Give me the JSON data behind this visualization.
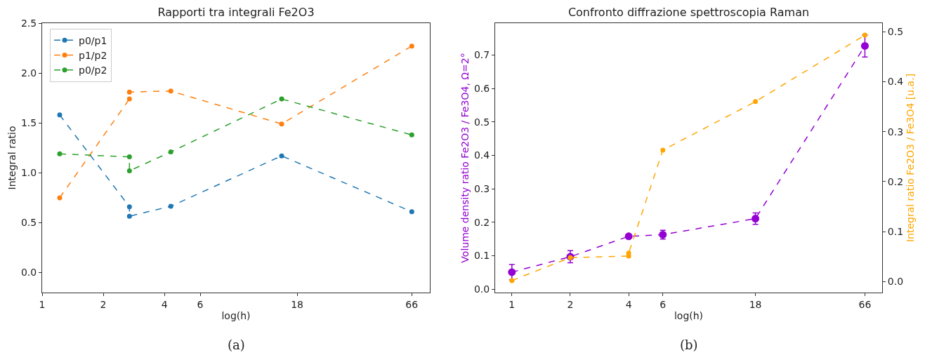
{
  "chart_data": [
    {
      "type": "line",
      "title": "Rapporti tra integrali Fe2O3",
      "xlabel": "log(h)",
      "ylabel": "Integral ratio",
      "log": "x",
      "xlim": [
        1,
        81
      ],
      "xticks": [
        1,
        2,
        4,
        6,
        18,
        66
      ],
      "ylim": [
        -0.2,
        2.5
      ],
      "yticks": [
        {
          "value": 0,
          "label": "0.0"
        },
        0.5,
        {
          "value": 1,
          "label": "1.0"
        },
        1.5,
        {
          "value": 2,
          "label": "2.0"
        },
        2.5
      ],
      "grid": false,
      "legend": "top left",
      "marker": "circle",
      "line_style": "dashed",
      "annotations": [
        "(a)"
      ],
      "series": [
        {
          "name": "p0/p1",
          "color": "#1f77b4",
          "x": [
            1.22,
            2.69,
            2.69,
            4.3,
            15.1,
            66
          ],
          "values": [
            1.58,
            0.66,
            0.565,
            0.665,
            1.17,
            0.61
          ]
        },
        {
          "name": "p1/p2",
          "color": "#ff7f0e",
          "x": [
            1.22,
            2.69,
            2.69,
            4.3,
            15.1,
            66
          ],
          "values": [
            0.75,
            1.74,
            1.81,
            1.82,
            1.49,
            2.27
          ]
        },
        {
          "name": "p0/p2",
          "color": "#2ca02c",
          "x": [
            1.22,
            2.69,
            2.69,
            4.3,
            15.1,
            66
          ],
          "values": [
            1.19,
            1.16,
            1.02,
            1.21,
            1.74,
            1.38
          ]
        }
      ]
    },
    {
      "type": "line",
      "title": "Confronto diffrazione spettroscopia Raman",
      "xlabel": "log(h)",
      "ylabel": "Volume density ratio Fe2O3 / Fe3O4, Ω=2°",
      "y2label": "Integral ratio Fe2O3 / Fe3O4 [u.a.]",
      "log": "x",
      "xlim": [
        0.82,
        81
      ],
      "xticks": [
        1,
        2,
        4,
        6,
        18,
        66
      ],
      "ylim": [
        -0.01,
        0.795
      ],
      "yticks": [
        {
          "value": 0,
          "label": "0.0"
        },
        0.1,
        0.2,
        0.3,
        0.4,
        0.5,
        0.6,
        0.7
      ],
      "y2lim": [
        -0.022,
        0.517
      ],
      "y2ticks": [
        {
          "value": 0,
          "label": "0.0"
        },
        0.1,
        0.2,
        0.3,
        0.4,
        0.5
      ],
      "grid": false,
      "legend": false,
      "marker": "circle",
      "line_style": "dashed",
      "annotations": [
        "(b)"
      ],
      "series": [
        {
          "color": "#9400d3",
          "x": [
            1,
            2,
            4,
            6,
            18,
            66
          ],
          "values": [
            0.051,
            0.097,
            0.158,
            0.163,
            0.211,
            0.727
          ],
          "errors": [
            0.023,
            0.018,
            0.004,
            0.013,
            0.017,
            0.033
          ]
        },
        {
          "color": "#ffa500",
          "axis": "y2",
          "x": [
            1,
            2,
            4,
            4,
            6,
            18,
            66
          ],
          "values": [
            0.002,
            0.048,
            0.051,
            0.057,
            0.263,
            0.36,
            0.493
          ]
        }
      ]
    }
  ]
}
